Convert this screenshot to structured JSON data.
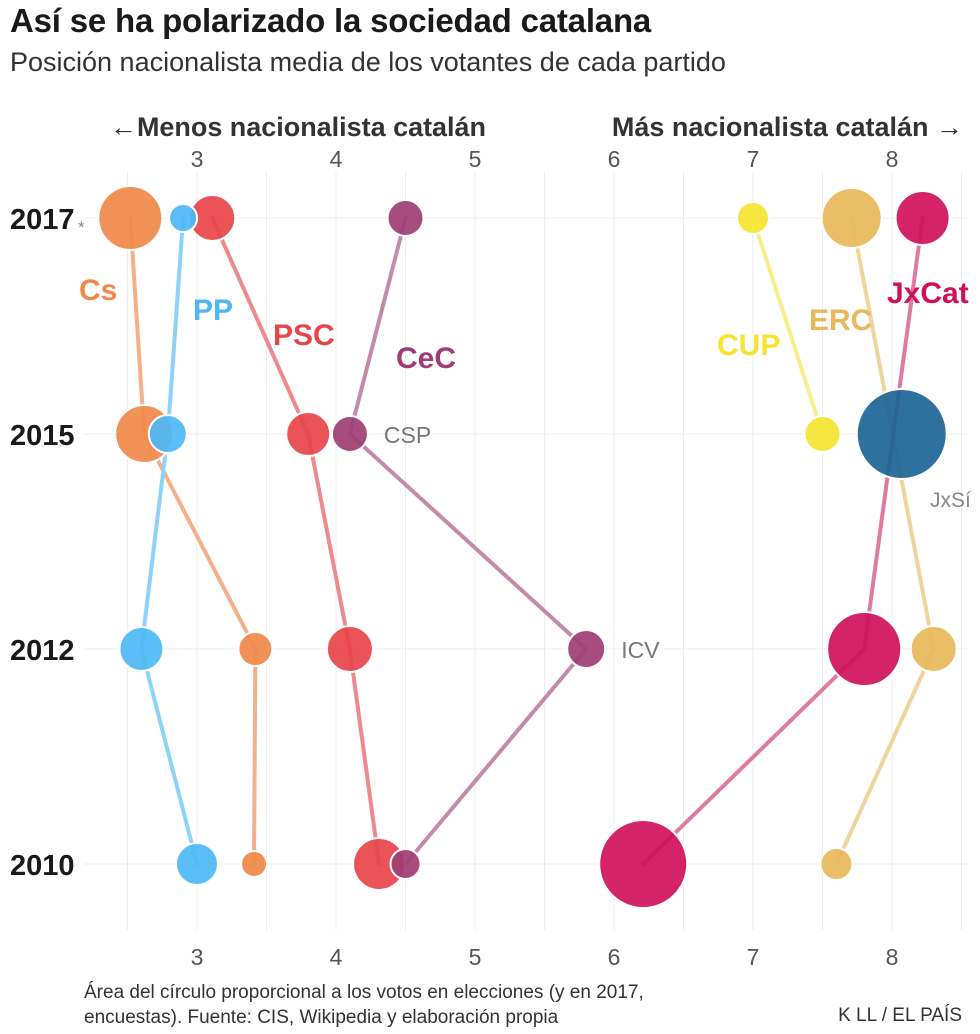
{
  "title": "Así se ha polarizado la sociedad catalana",
  "subtitle": "Posición nacionalista media de los votantes de cada partido",
  "footnote": "Área del círculo proporcional a los votos en elecciones (y en 2017, encuestas). Fuente: CIS, Wikipedia y elaboración propia",
  "credit": "K LL / EL PAÍS",
  "chart_data": {
    "type": "scatter",
    "title": "Así se ha polarizado la sociedad catalana",
    "subtitle": "Posición nacionalista media de los votantes de cada partido",
    "axis_left_label": "←Menos nacionalista catalán",
    "axis_right_label": "Más nacionalista catalán →",
    "xlim": [
      2.1,
      8.55
    ],
    "x_ticks": [
      3,
      4,
      5,
      6,
      7,
      8
    ],
    "years": [
      "2017",
      "2015",
      "2012",
      "2010"
    ],
    "year_note": "*",
    "size_note": "Área del círculo proporcional a los votos",
    "series": [
      {
        "name": "Cs",
        "label": "Cs",
        "color": "#f08a4b",
        "line_color": "#f4b08a",
        "points": [
          {
            "year": "2017",
            "x": 2.52,
            "r": 32
          },
          {
            "year": "2015",
            "x": 2.62,
            "r": 29
          },
          {
            "year": "2012",
            "x": 3.42,
            "r": 17
          },
          {
            "year": "2010",
            "x": 3.41,
            "r": 13
          }
        ]
      },
      {
        "name": "PP",
        "label": "PP",
        "color": "#4db8f5",
        "line_color": "#8dd3f8",
        "points": [
          {
            "year": "2017",
            "x": 2.9,
            "r": 14
          },
          {
            "year": "2015",
            "x": 2.79,
            "r": 19
          },
          {
            "year": "2012",
            "x": 2.6,
            "r": 22
          },
          {
            "year": "2010",
            "x": 3.0,
            "r": 21
          }
        ]
      },
      {
        "name": "PSC",
        "label": "PSC",
        "color": "#e8444a",
        "line_color": "#ee8a8e",
        "points": [
          {
            "year": "2017",
            "x": 3.11,
            "r": 23
          },
          {
            "year": "2015",
            "x": 3.8,
            "r": 22
          },
          {
            "year": "2012",
            "x": 4.1,
            "r": 23
          },
          {
            "year": "2010",
            "x": 4.31,
            "r": 26
          }
        ]
      },
      {
        "name": "CeC",
        "label": "CeC",
        "color": "#9e3e75",
        "line_color": "#c48aab",
        "points": [
          {
            "year": "2017",
            "x": 4.5,
            "r": 18,
            "label": ""
          },
          {
            "year": "2015",
            "x": 4.1,
            "r": 18,
            "label": "CSP"
          },
          {
            "year": "2012",
            "x": 5.8,
            "r": 19,
            "label": "ICV"
          },
          {
            "year": "2010",
            "x": 4.5,
            "r": 15,
            "label": ""
          }
        ]
      },
      {
        "name": "CUP",
        "label": "CUP",
        "color": "#f5e530",
        "line_color": "#f8ef8c",
        "points": [
          {
            "year": "2017",
            "x": 7.0,
            "r": 16
          },
          {
            "year": "2015",
            "x": 7.5,
            "r": 18
          }
        ]
      },
      {
        "name": "ERC",
        "label": "ERC",
        "color": "#e8b85a",
        "line_color": "#efd59c",
        "points": [
          {
            "year": "2017",
            "x": 7.71,
            "r": 30
          },
          {
            "year": "2012",
            "x": 8.3,
            "r": 23
          },
          {
            "year": "2010",
            "x": 7.6,
            "r": 16
          }
        ]
      },
      {
        "name": "JxCat",
        "label": "JxCat",
        "color": "#d0115a",
        "line_color": "#e07b9f",
        "points": [
          {
            "year": "2017",
            "x": 8.22,
            "r": 27
          },
          {
            "year": "2012",
            "x": 7.8,
            "r": 37
          },
          {
            "year": "2010",
            "x": 6.21,
            "r": 44
          }
        ]
      },
      {
        "name": "JxSí",
        "label": "JxSí",
        "color": "#1c6496",
        "line_color": "#1c6496",
        "points": [
          {
            "year": "2015",
            "x": 8.07,
            "r": 45
          }
        ]
      }
    ]
  }
}
